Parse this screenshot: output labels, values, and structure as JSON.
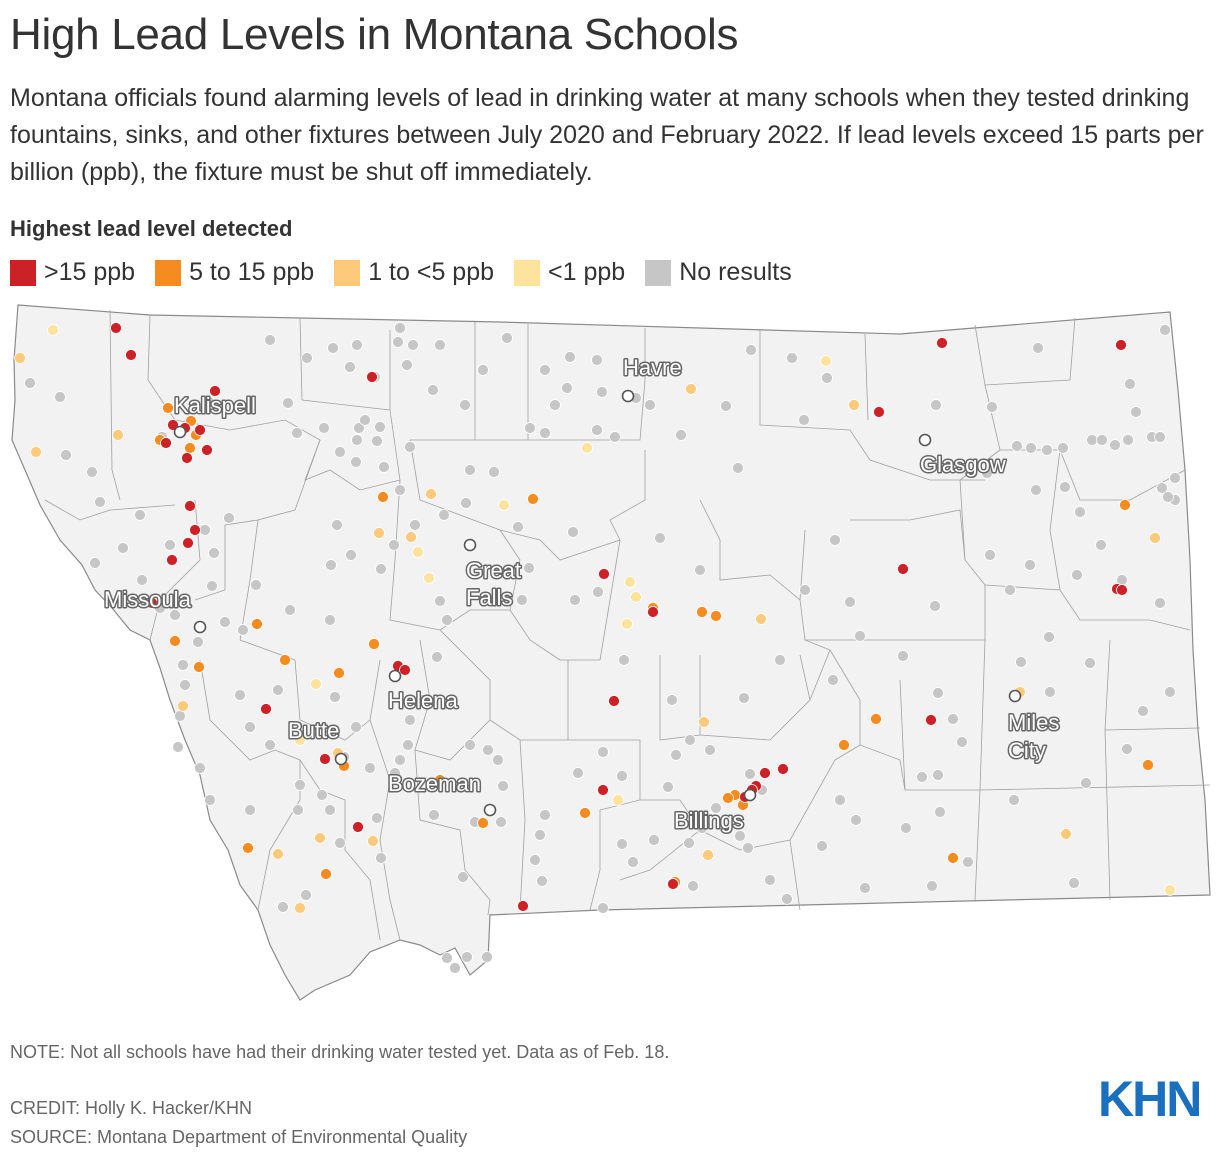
{
  "title": "High Lead Levels in Montana Schools",
  "subtitle": "Montana officials found alarming levels of lead in drinking water at many schools when they tested drinking fountains, sinks, and other fixtures between July 2020 and February 2022. If lead levels exceed 15 parts per billion (ppb), the fixture must be shut off immediately.",
  "legend": {
    "title": "Highest lead level detected",
    "items": [
      {
        "label": ">15 ppb",
        "color": "#cc2127"
      },
      {
        "label": "5 to 15 ppb",
        "color": "#f68b1f"
      },
      {
        "label": "1 to <5 ppb",
        "color": "#fdc97a"
      },
      {
        "label": "<1 ppb",
        "color": "#fee39e"
      },
      {
        "label": "No results",
        "color": "#c6c6c6"
      }
    ]
  },
  "cities": [
    "Kalispell",
    "Havre",
    "Glasgow",
    "Missoula",
    "Great Falls",
    "Helena",
    "Butte",
    "Bozeman",
    "Billings",
    "Miles City"
  ],
  "note": "NOTE: Not all schools have had their drinking water tested yet. Data as of Feb. 18.",
  "credit": "CREDIT: Holly K. Hacker/KHN",
  "source": "SOURCE: Montana Department of Environmental Quality",
  "logo": "KHN"
}
